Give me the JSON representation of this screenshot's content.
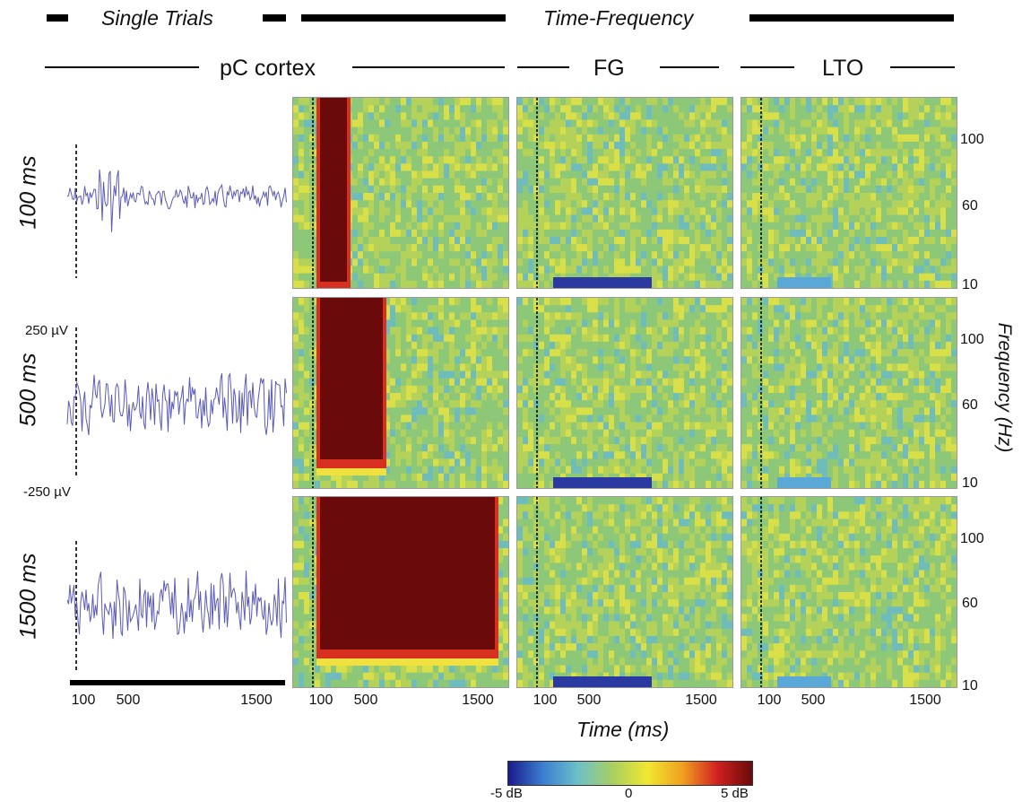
{
  "header": {
    "single_trials": "Single Trials",
    "time_frequency": "Time-Frequency"
  },
  "regions": [
    "pC cortex",
    "FG",
    "LTO"
  ],
  "conditions": [
    "100 ms",
    "500 ms",
    "1500 ms"
  ],
  "trace_scale": {
    "top": "250 µV",
    "bottom": "-250 µV"
  },
  "freq_ticks": [
    "100",
    "60",
    "10"
  ],
  "time_ticks": [
    "100",
    "500",
    "1500"
  ],
  "x_axis_label": "Time (ms)",
  "y_axis_label": "Frequency (Hz)",
  "colorbar": {
    "min": "-5 dB",
    "mid": "0",
    "max": "5 dB",
    "colors": [
      "#1a1a8c",
      "#3a7fd0",
      "#6cc0c8",
      "#a8d060",
      "#f0e830",
      "#f0a020",
      "#d02020",
      "#6a0a0a"
    ]
  },
  "palette": {
    "trace": "#5a5ab8",
    "background": "#7cc07a"
  }
}
